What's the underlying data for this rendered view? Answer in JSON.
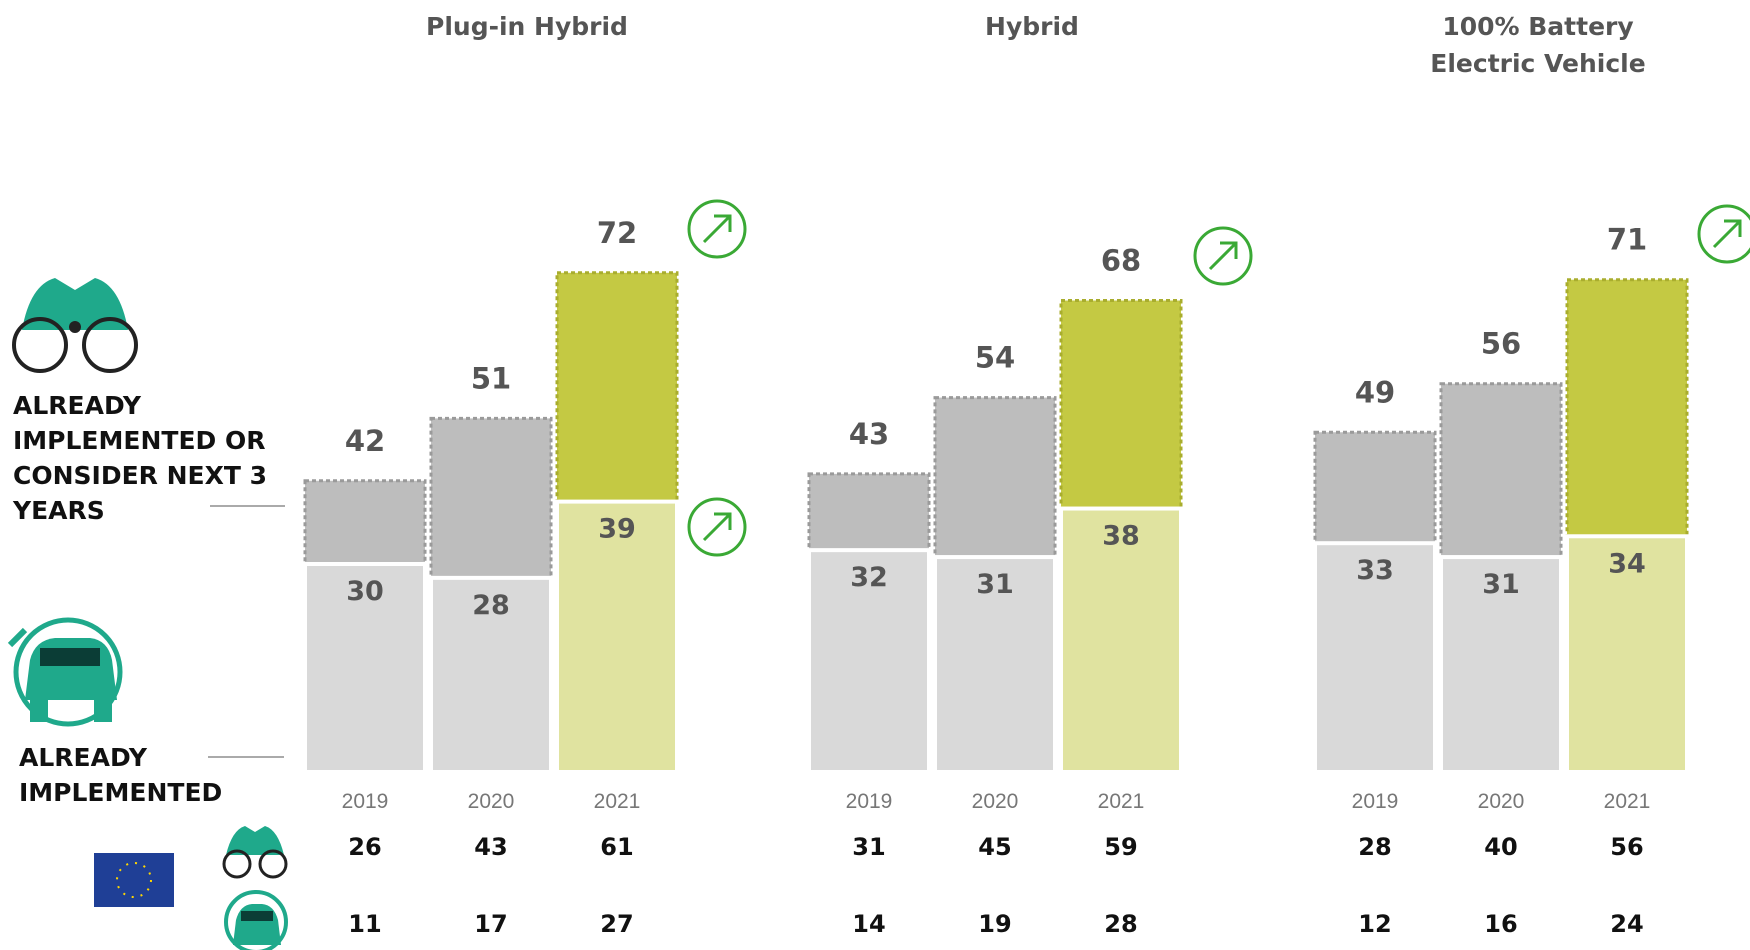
{
  "legend_labels": {
    "consider": "ALREADY IMPLEMENTED OR CONSIDER NEXT 3 YEARS",
    "implemented": "ALREADY IMPLEMENTED"
  },
  "chart_data": [
    {
      "type": "bar",
      "title": "Plug-in Hybrid",
      "categories": [
        "2019",
        "2020",
        "2021"
      ],
      "ylim": [
        0,
        75
      ],
      "series": [
        {
          "name": "ALREADY IMPLEMENTED OR CONSIDER NEXT 3 YEARS",
          "colors": [
            "#bdbdbd",
            "#bdbdbd",
            "#c4c943"
          ],
          "values": [
            42,
            51,
            72
          ]
        },
        {
          "name": "ALREADY IMPLEMENTED",
          "colors": [
            "#d9d9d9",
            "#d9d9d9",
            "#e0e3a0"
          ],
          "values": [
            30,
            28,
            39
          ]
        }
      ],
      "eu_rows": [
        [
          26,
          43,
          61
        ],
        [
          11,
          17,
          27
        ]
      ]
    },
    {
      "type": "bar",
      "title": "Hybrid",
      "categories": [
        "2019",
        "2020",
        "2021"
      ],
      "ylim": [
        0,
        75
      ],
      "series": [
        {
          "name": "ALREADY IMPLEMENTED OR CONSIDER NEXT 3 YEARS",
          "colors": [
            "#bdbdbd",
            "#bdbdbd",
            "#c4c943"
          ],
          "values": [
            43,
            54,
            68
          ]
        },
        {
          "name": "ALREADY IMPLEMENTED",
          "colors": [
            "#d9d9d9",
            "#d9d9d9",
            "#e0e3a0"
          ],
          "values": [
            32,
            31,
            38
          ]
        }
      ],
      "eu_rows": [
        [
          31,
          45,
          59
        ],
        [
          14,
          19,
          28
        ]
      ]
    },
    {
      "type": "bar",
      "title": "100% Battery Electric Vehicle",
      "categories": [
        "2019",
        "2020",
        "2021"
      ],
      "ylim": [
        0,
        75
      ],
      "series": [
        {
          "name": "ALREADY IMPLEMENTED OR CONSIDER NEXT 3 YEARS",
          "colors": [
            "#bdbdbd",
            "#bdbdbd",
            "#c4c943"
          ],
          "values": [
            49,
            56,
            71
          ]
        },
        {
          "name": "ALREADY IMPLEMENTED",
          "colors": [
            "#d9d9d9",
            "#d9d9d9",
            "#e0e3a0"
          ],
          "values": [
            33,
            31,
            34
          ]
        }
      ],
      "eu_rows": [
        [
          28,
          40,
          56
        ],
        [
          12,
          16,
          24
        ]
      ]
    }
  ]
}
